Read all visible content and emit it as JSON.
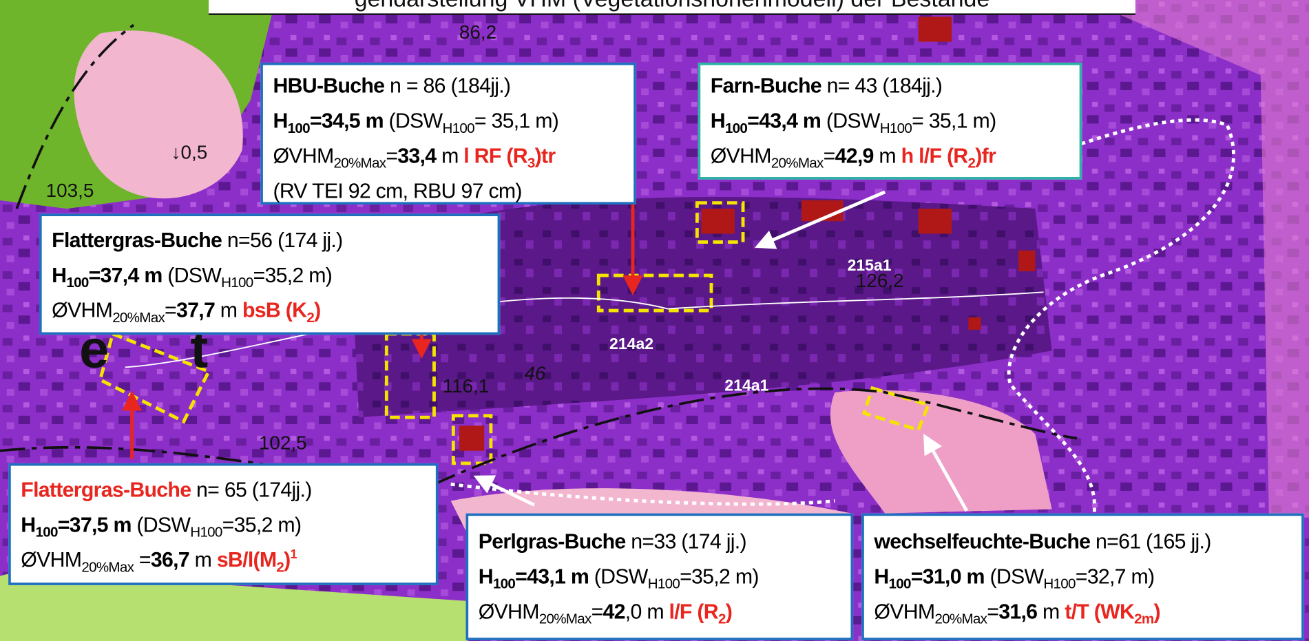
{
  "title": "gendarstellung VHM (Vegetationshöhenmodell) der Bestände",
  "map_labels": [
    "86,2",
    "↓0,5",
    "103,5",
    "215a1",
    "126,2",
    "214a2",
    "214a1",
    "116,1",
    "46",
    "102,5",
    "e",
    "t"
  ],
  "boxes": [
    {
      "lines": [
        [
          "HBU-Buche",
          " n = 86 (184jj.)"
        ],
        [
          "H",
          "100",
          "=34,5 m",
          " (DSW",
          "H100",
          "= 35,1 m)"
        ],
        [
          "ØVHM",
          "20%Max",
          "=",
          "33,4",
          " m ",
          "l RF (R",
          "3",
          ")tr"
        ],
        [
          "(RV TEI 92 cm, RBU 97 cm)"
        ]
      ]
    },
    {
      "lines": [
        [
          "Farn-Buche",
          " n= 43 (184jj.)"
        ],
        [
          "H",
          "100",
          "=43,4 m",
          " (DSW",
          "H100",
          "= 35,1 m)"
        ],
        [
          "ØVHM",
          "20%Max",
          "=",
          "42,9",
          " m ",
          "h l/F (R",
          "2",
          ")fr"
        ]
      ]
    },
    {
      "lines": [
        [
          "Flattergras-Buche",
          " n=56 (174 jj.)"
        ],
        [
          "H",
          "100",
          "=37,4 m",
          " (DSW",
          "H100",
          "=35,2 m)"
        ],
        [
          "ØVHM",
          "20%Max",
          "=",
          "37,7",
          " m ",
          "bsB (K",
          "2",
          ")"
        ]
      ]
    },
    {
      "lines": [
        [
          "Flattergras-Buche",
          " n= 65 (174jj.)"
        ],
        [
          "H",
          "100",
          "=37,5 m",
          " (DSW",
          "H100",
          "=35,2 m)"
        ],
        [
          "ØVHM",
          "20%Max",
          " =",
          "36,7",
          " m ",
          "sB/l(M",
          "2",
          ")",
          "1"
        ]
      ]
    },
    {
      "lines": [
        [
          "Perlgras-Buche",
          "  n=33  (174 jj.)"
        ],
        [
          "H",
          "100",
          "=43,1 m",
          " (DSW",
          "H100",
          "=35,2 m)"
        ],
        [
          "ØVHM",
          "20%Max",
          "=",
          "42",
          ",0 m ",
          "l/F  (R",
          "2",
          ")"
        ]
      ]
    },
    {
      "lines": [
        [
          "wechselfeuchte-Buche",
          "  n=61  (165 jj.)"
        ],
        [
          "H",
          "100",
          "=31,0 m",
          " (DSW",
          "H100",
          "=32,7 m)"
        ],
        [
          "ØVHM",
          "20%Max",
          "=",
          "31,6",
          " m ",
          "t/T (WK",
          "2m",
          ")"
        ]
      ]
    }
  ]
}
